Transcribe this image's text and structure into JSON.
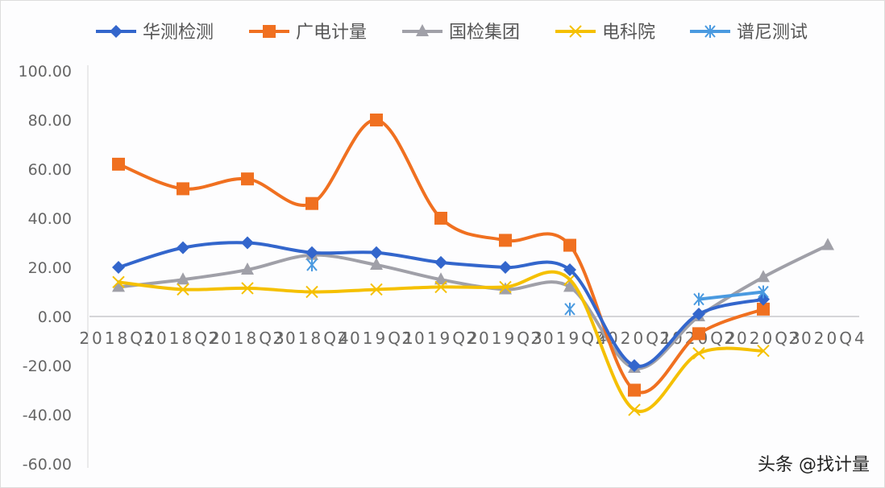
{
  "watermark": "头条 @找计量",
  "chart_data": {
    "type": "line",
    "title": "",
    "xlabel": "",
    "ylabel": "",
    "ylim": [
      -60,
      100
    ],
    "yticks": [
      100,
      80,
      60,
      40,
      20,
      0,
      -20,
      -40,
      -60
    ],
    "ytick_labels": [
      "100.00",
      "80.00",
      "60.00",
      "40.00",
      "20.00",
      "0.00",
      "-20.00",
      "-40.00",
      "-60.00"
    ],
    "legend_position": "top",
    "categories": [
      "2018Q1",
      "2018Q2",
      "2018Q3",
      "2018Q4",
      "2019Q1",
      "2019Q2",
      "2019Q3",
      "2019Q4",
      "2020Q1",
      "2020Q2",
      "2020Q3",
      "2020Q4"
    ],
    "series": [
      {
        "name": "华测检测",
        "color": "#3366cc",
        "marker": "diamond",
        "values": [
          20,
          28,
          30,
          26,
          26,
          22,
          20,
          19,
          -20,
          1,
          7,
          null
        ]
      },
      {
        "name": "广电计量",
        "color": "#f07020",
        "marker": "square",
        "values": [
          62,
          52,
          56,
          46,
          80,
          40,
          31,
          29,
          -30,
          -7,
          3,
          null
        ]
      },
      {
        "name": "国检集团",
        "color": "#a0a0a8",
        "marker": "triangle",
        "values": [
          12,
          15,
          19,
          25,
          21,
          15,
          11,
          12,
          -21,
          0,
          16,
          29
        ]
      },
      {
        "name": "电科院",
        "color": "#f5c000",
        "marker": "x",
        "values": [
          14,
          11,
          11.5,
          10,
          11,
          12,
          12,
          15,
          -38,
          -15,
          -14,
          null
        ]
      },
      {
        "name": "谱尼测试",
        "color": "#4a9ae0",
        "marker": "star",
        "values": [
          null,
          null,
          null,
          21,
          null,
          null,
          null,
          3,
          null,
          7,
          10,
          null
        ]
      }
    ]
  }
}
